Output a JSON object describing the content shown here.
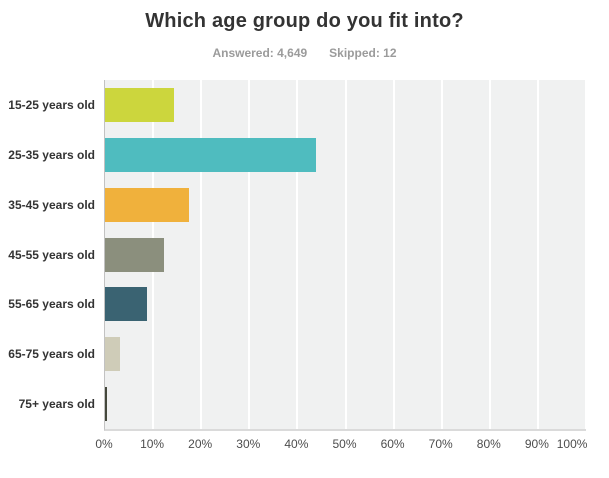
{
  "header": {
    "title": "Which age group do you fit into?",
    "answered": "Answered: 4,649",
    "skipped": "Skipped: 12"
  },
  "chart_data": {
    "type": "bar",
    "orientation": "horizontal",
    "title": "Which age group do you fit into?",
    "categories": [
      "15-25 years old",
      "25-35 years old",
      "35-45 years old",
      "45-55 years old",
      "55-65 years old",
      "65-75 years old",
      "75+ years old"
    ],
    "values": [
      14.4,
      43.8,
      17.4,
      12.2,
      8.8,
      3.1,
      0.4
    ],
    "unit": "%",
    "xlim": [
      0,
      100
    ],
    "x_ticks": [
      "0%",
      "10%",
      "20%",
      "30%",
      "40%",
      "50%",
      "60%",
      "70%",
      "80%",
      "90%",
      "100%"
    ],
    "grid": true,
    "legend": false,
    "bar_colors": [
      "#ccd63d",
      "#4fbcbf",
      "#f0b13c",
      "#8b8f7d",
      "#3a6372",
      "#cfccb8",
      "#45483c"
    ]
  },
  "colors": {
    "title_text": "#333333",
    "subtitle_text": "#9b9b9b",
    "category_text": "#333333",
    "tick_text": "#4d4d4d",
    "plot_background": "#f0f1f1",
    "gridline": "#ffffff",
    "axis_line": "#c2c2c2"
  }
}
